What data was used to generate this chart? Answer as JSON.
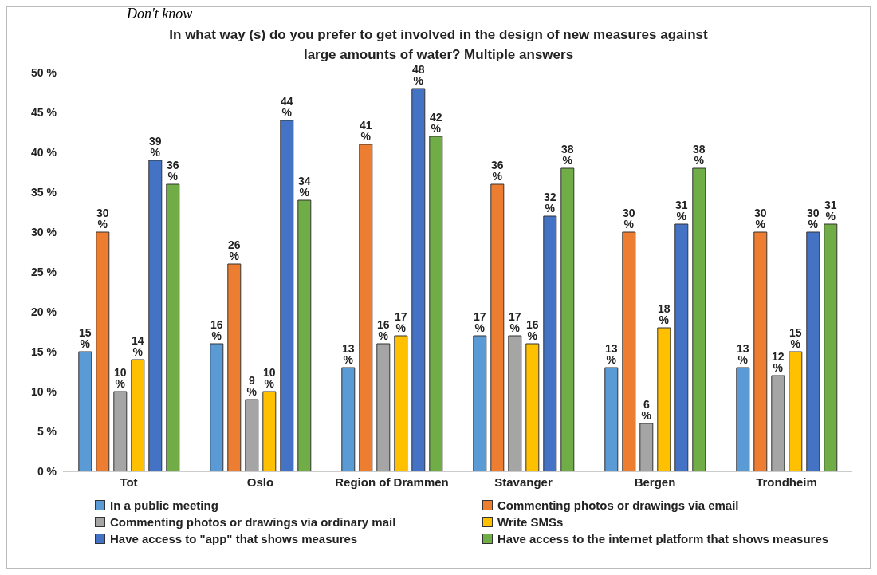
{
  "chart_data": {
    "type": "bar",
    "title": "In what way (s) do you prefer to get involved in the design of new measures against large amounts of water? Multiple answers",
    "annotations": [
      "Don't know"
    ],
    "categories": [
      "Tot",
      "Oslo",
      "Region of Drammen",
      "Stavanger",
      "Bergen",
      "Trondheim"
    ],
    "series": [
      {
        "name": "In a public meeting",
        "color": "#5b9bd5",
        "values": [
          15,
          16,
          13,
          17,
          13,
          13
        ],
        "value_labels": [
          "15 %",
          "16 %",
          "13 %",
          "17 %",
          "13 %",
          "13 %"
        ]
      },
      {
        "name": "Commenting photos or drawings via email",
        "color": "#ed7d31",
        "values": [
          30,
          26,
          41,
          36,
          30,
          30
        ],
        "value_labels": [
          "30 %",
          "26 %",
          "41 %",
          "36 %",
          "30 %",
          "30 %"
        ]
      },
      {
        "name": "Commenting photos or drawings via ordinary mail",
        "color": "#a5a5a5",
        "values": [
          10,
          9,
          16,
          17,
          6,
          12
        ],
        "value_labels": [
          "10 %",
          "9 %",
          "16 %",
          "17 %",
          "6 %",
          "12 %"
        ]
      },
      {
        "name": "Write SMSs",
        "color": "#ffc000",
        "values": [
          14,
          10,
          17,
          16,
          18,
          15
        ],
        "value_labels": [
          "14 %",
          "10 %",
          "17 %",
          "16 %",
          "18 %",
          "15 %"
        ]
      },
      {
        "name": "Have access to \"app\" that shows measures",
        "color": "#4472c4",
        "values": [
          39,
          44,
          48,
          32,
          31,
          30
        ],
        "value_labels": [
          "39 %",
          "44 %",
          "48 %",
          "32 %",
          "31 %",
          "30 %"
        ]
      },
      {
        "name": "Have access to the internet platform that shows measures",
        "color": "#70ad47",
        "values": [
          36,
          34,
          42,
          38,
          38,
          31
        ],
        "value_labels": [
          "36 %",
          "34 %",
          "42 %",
          "38 %",
          "38 %",
          "31 %"
        ]
      }
    ],
    "ylim": [
      0,
      50
    ],
    "yticks": [
      {
        "value": 0,
        "label": "0 %"
      },
      {
        "value": 5,
        "label": "5 %"
      },
      {
        "value": 10,
        "label": "10 %"
      },
      {
        "value": 15,
        "label": "15 %"
      },
      {
        "value": 20,
        "label": "20 %"
      },
      {
        "value": 25,
        "label": "25 %"
      },
      {
        "value": 30,
        "label": "30 %"
      },
      {
        "value": 35,
        "label": "35 %"
      },
      {
        "value": 40,
        "label": "40 %"
      },
      {
        "value": 45,
        "label": "45 %"
      },
      {
        "value": 50,
        "label": "50 %"
      }
    ],
    "grid": false,
    "legend": "bottom"
  }
}
